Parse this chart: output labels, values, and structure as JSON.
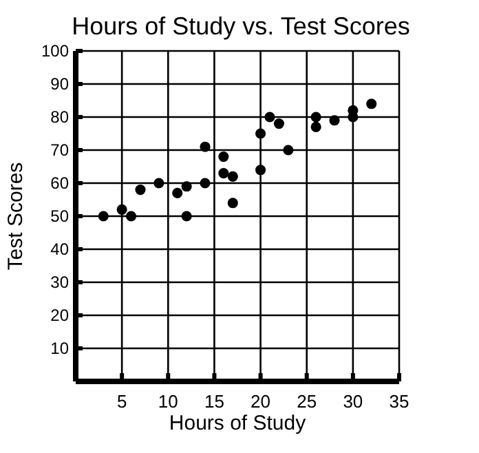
{
  "chart_data": {
    "type": "scatter",
    "title": "Hours of Study vs. Test Scores",
    "xlabel": "Hours of Study",
    "ylabel": "Test Scores",
    "x": [
      3,
      5,
      6,
      7,
      9,
      11,
      12,
      12,
      14,
      14,
      16,
      16,
      17,
      17,
      20,
      20,
      21,
      22,
      23,
      26,
      26,
      28,
      30,
      30,
      32
    ],
    "values": [
      50,
      52,
      50,
      58,
      60,
      57,
      50,
      59,
      71,
      60,
      68,
      63,
      62,
      54,
      75,
      64,
      80,
      78,
      70,
      80,
      77,
      79,
      82,
      80,
      84
    ],
    "color": "#000000",
    "marker": "circle",
    "xlim": [
      0,
      35
    ],
    "ylim": [
      0,
      100
    ],
    "xticks": [
      5,
      10,
      15,
      20,
      25,
      30,
      35
    ],
    "yticks": [
      10,
      20,
      30,
      40,
      50,
      60,
      70,
      80,
      90,
      100
    ],
    "grid": true
  }
}
